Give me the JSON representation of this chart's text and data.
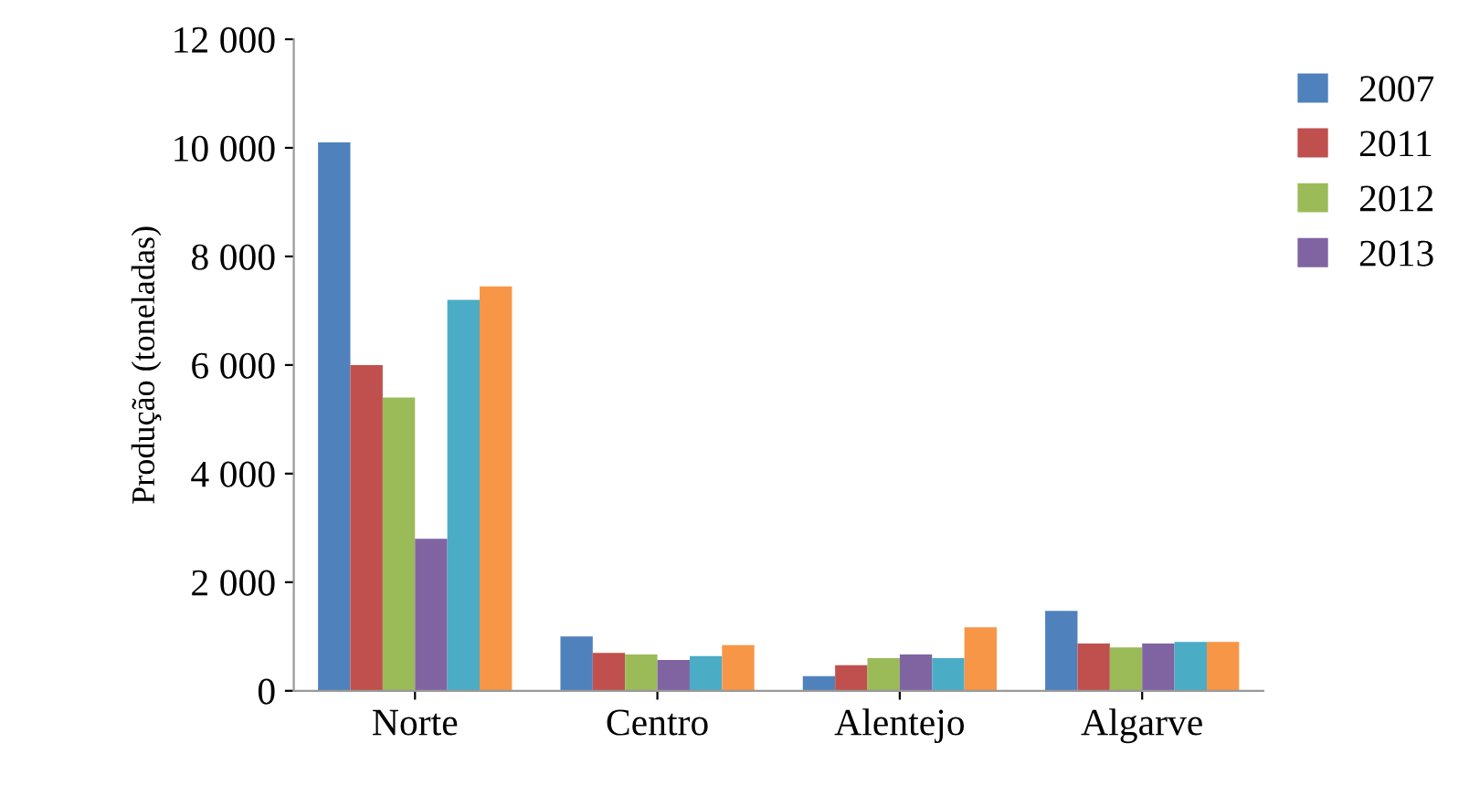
{
  "chart_data": {
    "type": "bar",
    "ylabel": "Produção (toneladas)",
    "categories": [
      "Norte",
      "Centro",
      "Alentejo",
      "Algarve"
    ],
    "series": [
      {
        "name": "2007",
        "color": "#4f81bd",
        "values": [
          10100,
          1000,
          270,
          1470
        ]
      },
      {
        "name": "2011",
        "color": "#c0504d",
        "values": [
          6000,
          700,
          470,
          870
        ]
      },
      {
        "name": "2012",
        "color": "#9bbb59",
        "values": [
          5400,
          670,
          600,
          800
        ]
      },
      {
        "name": "2013",
        "color": "#8064a2",
        "values": [
          2800,
          570,
          670,
          870
        ]
      },
      {
        "color": "#4bacc6",
        "values": [
          7200,
          640,
          600,
          900
        ]
      },
      {
        "color": "#f79646",
        "values": [
          7450,
          840,
          1170,
          900
        ]
      }
    ],
    "ylim": [
      0,
      12000
    ],
    "yticks": [
      {
        "value": 0,
        "label": "0"
      },
      {
        "value": 2000,
        "label": "2 000"
      },
      {
        "value": 4000,
        "label": "4 000"
      },
      {
        "value": 6000,
        "label": "6 000"
      },
      {
        "value": 8000,
        "label": "8 000"
      },
      {
        "value": 10000,
        "label": "10 000"
      },
      {
        "value": 12000,
        "label": "12 000"
      }
    ],
    "grid": false,
    "legend": "top right"
  }
}
